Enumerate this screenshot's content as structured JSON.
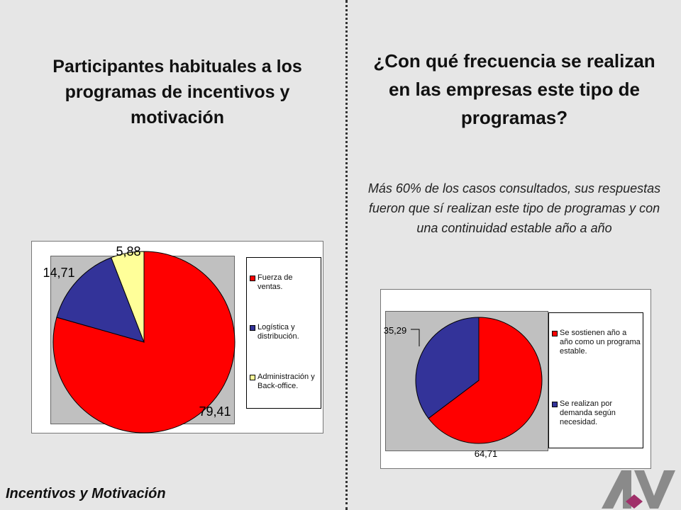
{
  "left_title": "Participantes habituales a los programas de incentivos y motivación",
  "right_title": "¿Con qué frecuencia se realizan en las empresas este tipo de programas?",
  "note": "Más 60% de los casos consultados, sus respuestas fueron que sí realizan este tipo de programas y con una continuidad estable año a año",
  "footer": "Incentivos y  Motivación",
  "logo_icon": "av-logo-icon",
  "chart_data": [
    {
      "type": "pie",
      "slices": [
        {
          "label": "Fuerza de ventas.",
          "value": 79.41,
          "value_label": "79,41",
          "color": "#ff0000"
        },
        {
          "label": "Logística y distribución.",
          "value": 14.71,
          "value_label": "14,71",
          "color": "#333399"
        },
        {
          "label": "Administración y Back-office.",
          "value": 5.88,
          "value_label": "5,88",
          "color": "#ffff99"
        }
      ],
      "legend": "right"
    },
    {
      "type": "pie",
      "slices": [
        {
          "label": "Se sostienen año a año como un programa estable.",
          "value": 64.71,
          "value_label": "64,71",
          "color": "#ff0000"
        },
        {
          "label": "Se realizan por demanda según necesidad.",
          "value": 35.29,
          "value_label": "35,29",
          "color": "#333399"
        }
      ],
      "legend": "right"
    }
  ]
}
